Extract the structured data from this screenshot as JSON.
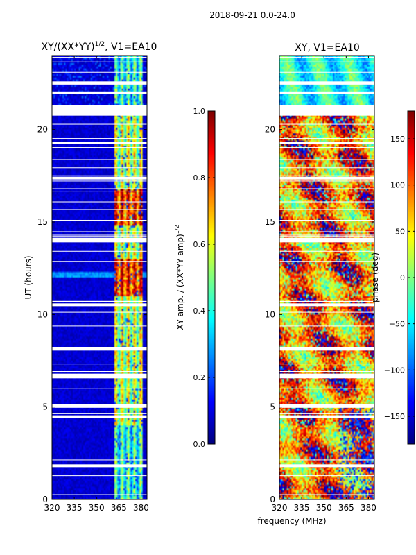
{
  "figure": {
    "suptitle": "2018-09-21 0.0-24.0",
    "shared_xlabel": "frequency (MHz)"
  },
  "colors": {
    "jet": [
      "#00007f",
      "#0000ff",
      "#007fff",
      "#00ffff",
      "#7fff7f",
      "#ffff00",
      "#ff7f00",
      "#ff0000",
      "#7f0000"
    ],
    "flag": "#ffffff"
  },
  "chart_data": [
    {
      "type": "heatmap",
      "title_base": "XY/(XX*YY)",
      "title_exp": "1/2",
      "title_tail": ", V1=EA10",
      "xlabel": "",
      "ylabel": "UT (hours)",
      "xlim": [
        320,
        384
      ],
      "ylim": [
        0,
        24
      ],
      "xticks": [
        320,
        335,
        350,
        365,
        380
      ],
      "yticks": [
        0,
        5,
        10,
        15,
        20
      ],
      "colorbar": {
        "label_base": "XY amp. / (XX*YY amp)",
        "label_exp": "1/2",
        "range": [
          0.0,
          1.0
        ],
        "ticks": [
          "0.0",
          "0.2",
          "0.4",
          "0.6",
          "0.8",
          "1.0"
        ],
        "tick_values": [
          0.0,
          0.2,
          0.4,
          0.6,
          0.8,
          1.0
        ]
      },
      "flagged_ut_ranges": [
        [
          1.75,
          1.9
        ],
        [
          4.4,
          4.55
        ],
        [
          5.0,
          5.15
        ],
        [
          6.55,
          6.8
        ],
        [
          8.1,
          8.25
        ],
        [
          10.45,
          10.6
        ],
        [
          13.9,
          14.15
        ],
        [
          17.3,
          17.45
        ],
        [
          19.2,
          19.35
        ],
        [
          20.75,
          21.3
        ],
        [
          21.9,
          22.05
        ],
        [
          22.45,
          22.6
        ]
      ],
      "features": "Low amplitude (~0.05) below 362 MHz; high amplitude (0.4-0.9) in 362-380 MHz band; weak stripe near UT 12.2"
    },
    {
      "type": "heatmap",
      "title": "XY, V1=EA10",
      "xlabel": "",
      "ylabel": "",
      "xlim": [
        320,
        384
      ],
      "ylim": [
        0,
        24
      ],
      "xticks": [
        320,
        335,
        350,
        365,
        380
      ],
      "yticks": [
        0,
        5,
        10,
        15,
        20
      ],
      "colorbar": {
        "label": "phase (deg)",
        "range": [
          -180,
          180
        ],
        "ticks": [
          "−150",
          "−100",
          "−50",
          "0",
          "50",
          "100",
          "150"
        ],
        "tick_values": [
          -150,
          -100,
          -50,
          0,
          50,
          100,
          150
        ]
      },
      "flagged_ut_ranges": [
        [
          1.75,
          1.9
        ],
        [
          4.4,
          4.55
        ],
        [
          5.0,
          5.15
        ],
        [
          6.55,
          6.8
        ],
        [
          8.1,
          8.25
        ],
        [
          10.45,
          10.6
        ],
        [
          13.9,
          14.15
        ],
        [
          17.3,
          17.45
        ],
        [
          19.2,
          19.35
        ],
        [
          20.75,
          21.3
        ],
        [
          21.9,
          22.05
        ],
        [
          22.45,
          22.6
        ]
      ],
      "features": "Phase mostly 0 to 180 deg with noisy structure; cooler (-50 to 0 deg) region above UT 21"
    }
  ]
}
